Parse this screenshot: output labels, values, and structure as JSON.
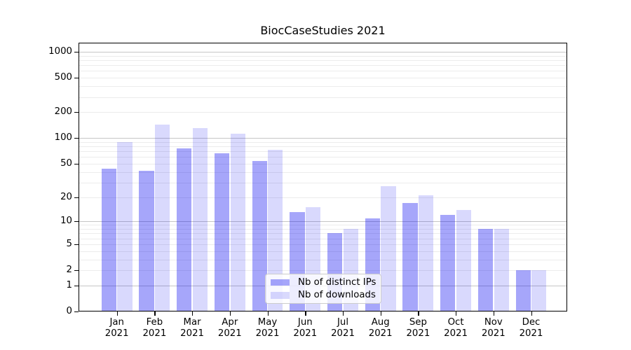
{
  "figure": {
    "title": "BiocCaseStudies 2021",
    "background": "#ffffff"
  },
  "chart_data": {
    "type": "bar",
    "title": "BiocCaseStudies 2021",
    "categories": [
      "Jan 2021",
      "Feb 2021",
      "Mar 2021",
      "Apr 2021",
      "May 2021",
      "Jun 2021",
      "Jul 2021",
      "Aug 2021",
      "Sep 2021",
      "Oct 2021",
      "Nov 2021",
      "Dec 2021"
    ],
    "series": [
      {
        "name": "Nb of distinct IPs",
        "color": "rgba(0,0,240,0.35)",
        "values": [
          44,
          41,
          76,
          66,
          54,
          13,
          7,
          11,
          17,
          12,
          8,
          2
        ]
      },
      {
        "name": "Nb of downloads",
        "color": "rgba(0,0,240,0.15)",
        "values": [
          89,
          144,
          130,
          112,
          73,
          15,
          8,
          27,
          21,
          14,
          8,
          2
        ]
      }
    ],
    "xlabel": "",
    "ylabel": "",
    "y_scale": "log1p",
    "y_ticks": [
      0,
      1,
      2,
      5,
      10,
      20,
      50,
      100,
      200,
      500,
      1000
    ],
    "ylim": [
      0,
      1300
    ],
    "grid": "horizontal, major (decades) dark + minor light",
    "grid_colors": {
      "major": "#c6c6c6",
      "minor": "#ececec"
    },
    "legend": {
      "position": "inside lower-center",
      "entries": [
        "Nb of distinct IPs",
        "Nb of downloads"
      ]
    }
  }
}
